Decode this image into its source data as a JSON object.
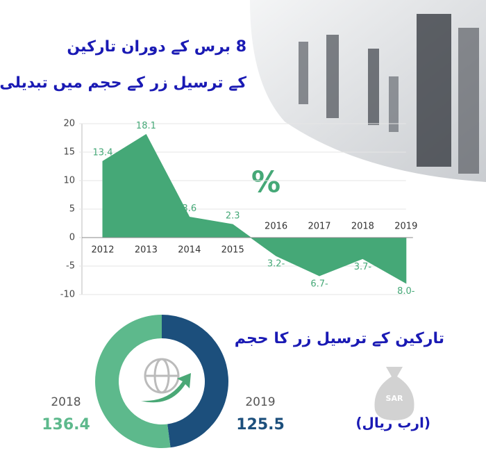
{
  "chart_data": [
    {
      "type": "area",
      "title": "8 برس کے دوران تارکین",
      "subtitle": "کے ترسیل زر کے حجم میں تبدیلی",
      "annotation": "%",
      "categories": [
        "2012",
        "2013",
        "2014",
        "2015",
        "2016",
        "2017",
        "2018",
        "2019"
      ],
      "values": [
        13.4,
        18.1,
        3.6,
        2.3,
        -3.2,
        -6.7,
        -3.7,
        -8.0
      ],
      "value_labels": [
        "13.4",
        "18.1",
        "3.6",
        "2.3",
        "3.2-",
        "6.7-",
        "3.7-",
        "8.0-"
      ],
      "color": "#45a877",
      "ylim": [
        -10,
        20
      ],
      "yticks": [
        -10,
        -5,
        0,
        5,
        10,
        15,
        20
      ],
      "grid": true
    },
    {
      "type": "donut",
      "title": "تارکین کے ترسیل زر کا حجم",
      "unit": "(ارب ریال)",
      "badge": "SAR",
      "categories": [
        "2018",
        "2019"
      ],
      "values": [
        136.4,
        125.5
      ],
      "colors": [
        "#5db98c",
        "#1c4f7c"
      ]
    }
  ]
}
